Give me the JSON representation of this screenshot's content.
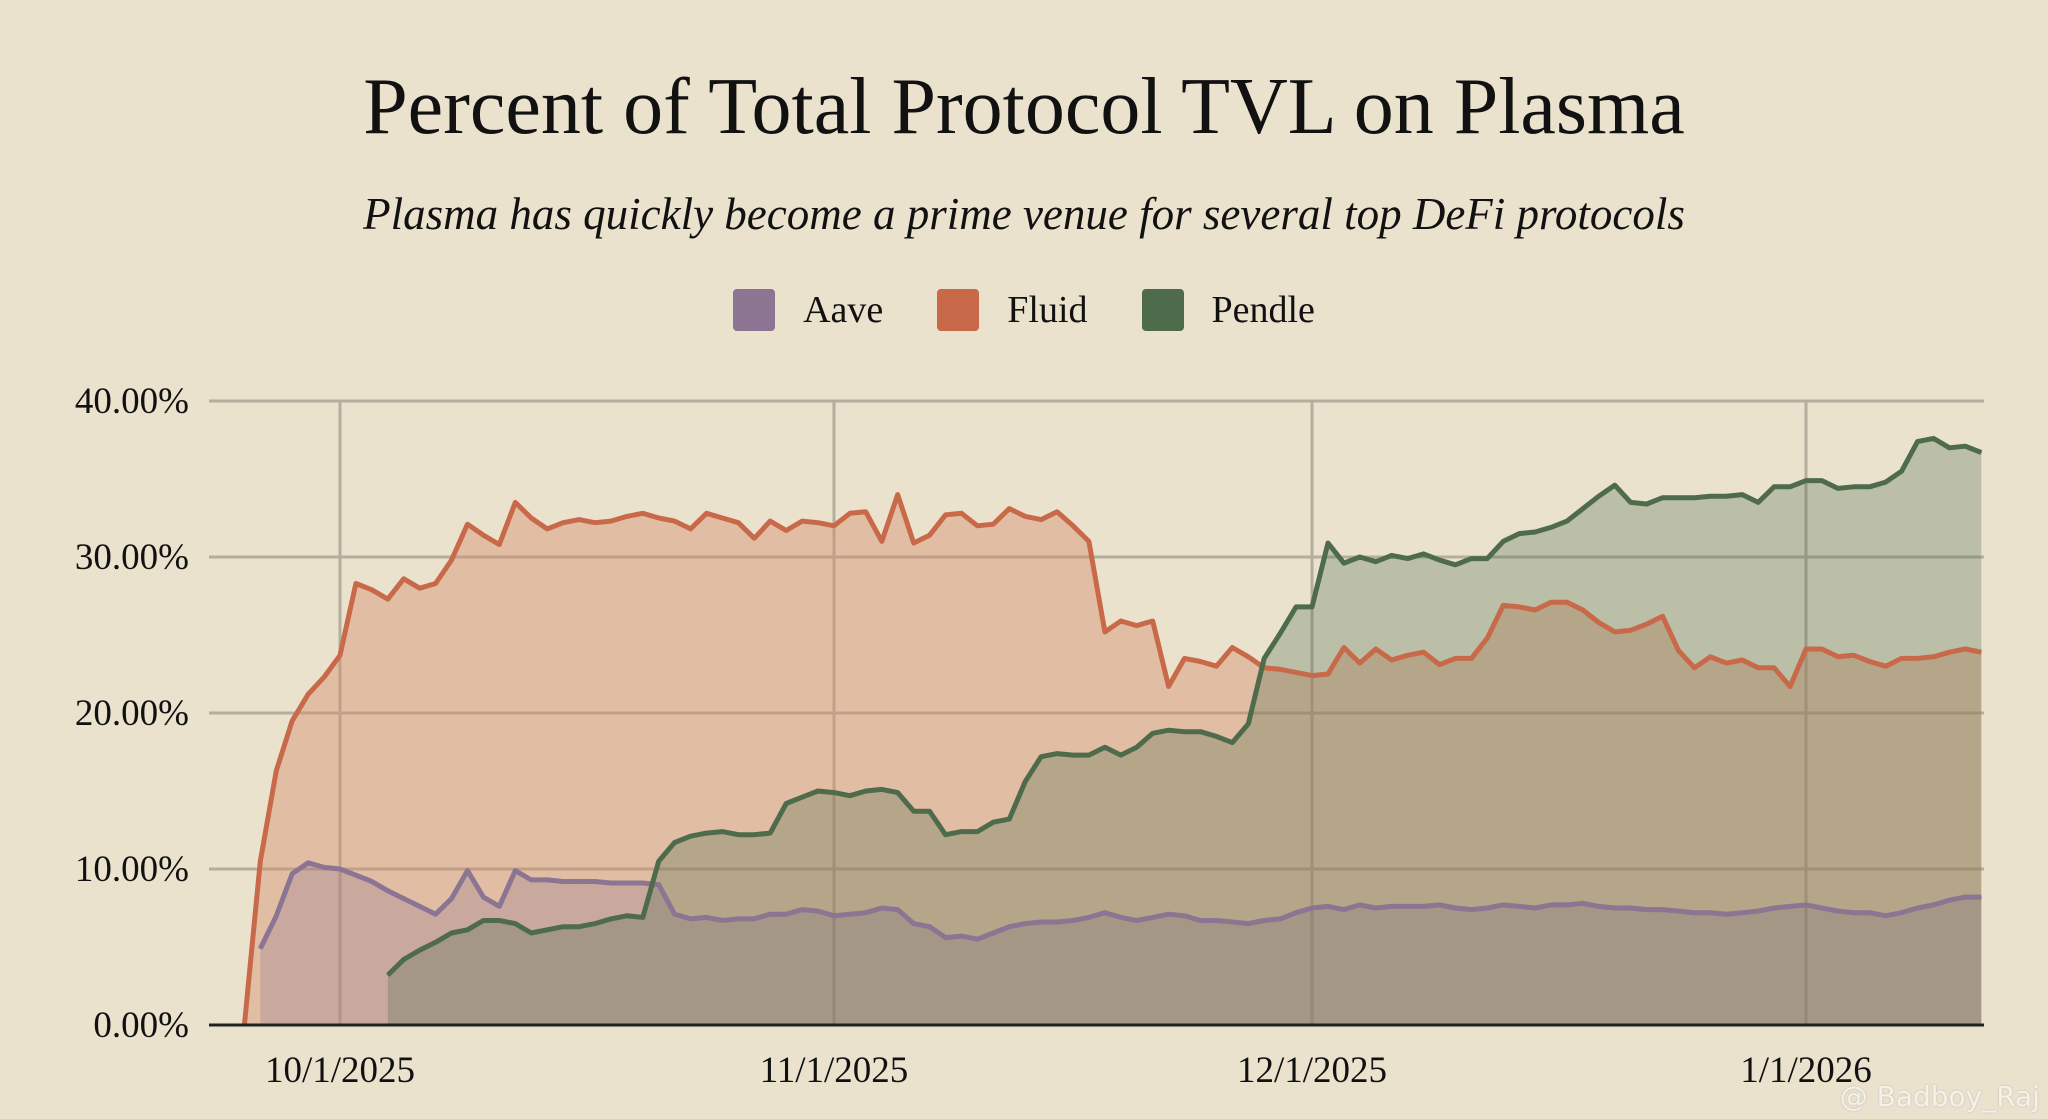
{
  "chart_data": {
    "type": "area",
    "title": "Percent of Total Protocol TVL on Plasma",
    "subtitle": "Plasma has quickly become a prime venue for several top DeFi protocols",
    "xlabel": "",
    "ylabel": "",
    "ylim": [
      0,
      40
    ],
    "yticks": [
      "0.00%",
      "10.00%",
      "20.00%",
      "30.00%",
      "40.00%"
    ],
    "xticks": [
      "10/1/2025",
      "11/1/2025",
      "12/1/2025",
      "1/1/2026"
    ],
    "grid": true,
    "legend_position": "top-center",
    "x": [
      "9/25/2025",
      "9/26/2025",
      "9/27/2025",
      "9/28/2025",
      "9/29/2025",
      "9/30/2025",
      "10/1/2025",
      "10/2/2025",
      "10/3/2025",
      "10/4/2025",
      "10/5/2025",
      "10/6/2025",
      "10/7/2025",
      "10/8/2025",
      "10/9/2025",
      "10/10/2025",
      "10/11/2025",
      "10/12/2025",
      "10/13/2025",
      "10/14/2025",
      "10/15/2025",
      "10/16/2025",
      "10/17/2025",
      "10/18/2025",
      "10/19/2025",
      "10/20/2025",
      "10/21/2025",
      "10/22/2025",
      "10/23/2025",
      "10/24/2025",
      "10/25/2025",
      "10/26/2025",
      "10/27/2025",
      "10/28/2025",
      "10/29/2025",
      "10/30/2025",
      "10/31/2025",
      "11/1/2025",
      "11/2/2025",
      "11/3/2025",
      "11/4/2025",
      "11/5/2025",
      "11/6/2025",
      "11/7/2025",
      "11/8/2025",
      "11/9/2025",
      "11/10/2025",
      "11/11/2025",
      "11/12/2025",
      "11/13/2025",
      "11/14/2025",
      "11/15/2025",
      "11/16/2025",
      "11/17/2025",
      "11/18/2025",
      "11/19/2025",
      "11/20/2025",
      "11/21/2025",
      "11/22/2025",
      "11/23/2025",
      "11/24/2025",
      "11/25/2025",
      "11/26/2025",
      "11/27/2025",
      "11/28/2025",
      "11/29/2025",
      "11/30/2025",
      "12/1/2025",
      "12/2/2025",
      "12/3/2025",
      "12/4/2025",
      "12/5/2025",
      "12/6/2025",
      "12/7/2025",
      "12/8/2025",
      "12/9/2025",
      "12/10/2025",
      "12/11/2025",
      "12/12/2025",
      "12/13/2025",
      "12/14/2025",
      "12/15/2025",
      "12/16/2025",
      "12/17/2025",
      "12/18/2025",
      "12/19/2025",
      "12/20/2025",
      "12/21/2025",
      "12/22/2025",
      "12/23/2025",
      "12/24/2025",
      "12/25/2025",
      "12/26/2025",
      "12/27/2025",
      "12/28/2025",
      "12/29/2025",
      "12/30/2025",
      "12/31/2025",
      "1/1/2026",
      "1/2/2026",
      "1/3/2026",
      "1/4/2026",
      "1/5/2026",
      "1/6/2026",
      "1/7/2026",
      "1/8/2026",
      "1/9/2026",
      "1/10/2026",
      "1/11/2026",
      "1/12/2026"
    ],
    "series": [
      {
        "name": "Fluid",
        "color": "#c8694a",
        "values": [
          0,
          10.5,
          16.3,
          19.5,
          21.2,
          22.3,
          23.7,
          28.3,
          27.9,
          27.3,
          28.6,
          28.0,
          28.3,
          29.8,
          32.1,
          31.4,
          30.8,
          33.5,
          32.5,
          31.8,
          32.2,
          32.4,
          32.2,
          32.3,
          32.6,
          32.8,
          32.5,
          32.3,
          31.8,
          32.8,
          32.5,
          32.2,
          31.2,
          32.3,
          31.7,
          32.3,
          32.2,
          32.0,
          32.8,
          32.9,
          31.0,
          34.0,
          30.9,
          31.4,
          32.7,
          32.8,
          32.0,
          32.1,
          33.1,
          32.6,
          32.4,
          32.9,
          32.0,
          31.0,
          25.2,
          25.9,
          25.6,
          25.9,
          21.7,
          23.5,
          23.3,
          23.0,
          24.2,
          23.6,
          22.9,
          22.8,
          22.6,
          22.4,
          22.5,
          24.2,
          23.2,
          24.1,
          23.4,
          23.7,
          23.9,
          23.1,
          23.5,
          23.5,
          24.8,
          26.9,
          26.8,
          26.6,
          27.1,
          27.1,
          26.6,
          25.8,
          25.2,
          25.3,
          25.7,
          26.2,
          24.0,
          22.9,
          23.6,
          23.2,
          23.4,
          22.9,
          22.9,
          21.7,
          24.1,
          24.1,
          23.6,
          23.7,
          23.3,
          23.0,
          23.5,
          23.5,
          23.6,
          23.9,
          24.1,
          23.9
        ]
      },
      {
        "name": "Aave",
        "color": "#8c7493",
        "values": [
          null,
          4.9,
          7.0,
          9.7,
          10.4,
          10.1,
          10.0,
          9.6,
          9.2,
          8.6,
          8.1,
          7.6,
          7.1,
          8.1,
          9.9,
          8.2,
          7.6,
          9.9,
          9.3,
          9.3,
          9.2,
          9.2,
          9.2,
          9.1,
          9.1,
          9.1,
          9.0,
          7.1,
          6.8,
          6.9,
          6.7,
          6.8,
          6.8,
          7.1,
          7.1,
          7.4,
          7.3,
          7.0,
          7.1,
          7.2,
          7.5,
          7.4,
          6.5,
          6.3,
          5.6,
          5.7,
          5.5,
          5.9,
          6.3,
          6.5,
          6.6,
          6.6,
          6.7,
          6.9,
          7.2,
          6.9,
          6.7,
          6.9,
          7.1,
          7.0,
          6.7,
          6.7,
          6.6,
          6.5,
          6.7,
          6.8,
          7.2,
          7.5,
          7.6,
          7.4,
          7.7,
          7.5,
          7.6,
          7.6,
          7.6,
          7.7,
          7.5,
          7.4,
          7.5,
          7.7,
          7.6,
          7.5,
          7.7,
          7.7,
          7.8,
          7.6,
          7.5,
          7.5,
          7.4,
          7.4,
          7.3,
          7.2,
          7.2,
          7.1,
          7.2,
          7.3,
          7.5,
          7.6,
          7.7,
          7.5,
          7.3,
          7.2,
          7.2,
          7.0,
          7.2,
          7.5,
          7.7,
          8.0,
          8.2,
          8.2
        ]
      },
      {
        "name": "Pendle",
        "color": "#4e6b4c",
        "values": [
          null,
          null,
          null,
          null,
          null,
          null,
          null,
          null,
          null,
          3.2,
          4.2,
          4.8,
          5.3,
          5.9,
          6.1,
          6.7,
          6.7,
          6.5,
          5.9,
          6.1,
          6.3,
          6.3,
          6.5,
          6.8,
          7.0,
          6.9,
          10.5,
          11.7,
          12.1,
          12.3,
          12.4,
          12.2,
          12.2,
          12.3,
          14.2,
          14.6,
          15.0,
          14.9,
          14.7,
          15.0,
          15.1,
          14.9,
          13.7,
          13.7,
          12.2,
          12.4,
          12.4,
          13.0,
          13.2,
          15.6,
          17.2,
          17.4,
          17.3,
          17.3,
          17.8,
          17.3,
          17.8,
          18.7,
          18.9,
          18.8,
          18.8,
          18.5,
          18.1,
          19.3,
          23.5,
          25.1,
          26.8,
          26.8,
          30.9,
          29.6,
          30.0,
          29.7,
          30.1,
          29.9,
          30.2,
          29.8,
          29.5,
          29.9,
          29.9,
          31.0,
          31.5,
          31.6,
          31.9,
          32.3,
          33.1,
          33.9,
          34.6,
          33.5,
          33.4,
          33.8,
          33.8,
          33.8,
          33.9,
          33.9,
          34.0,
          33.5,
          34.5,
          34.5,
          34.9,
          34.9,
          34.4,
          34.5,
          34.5,
          34.8,
          35.5,
          37.4,
          37.6,
          37.0,
          37.1,
          36.7
        ]
      }
    ]
  },
  "legend_order": [
    "Aave",
    "Fluid",
    "Pendle"
  ],
  "watermark": "@ Badboy_Raj"
}
